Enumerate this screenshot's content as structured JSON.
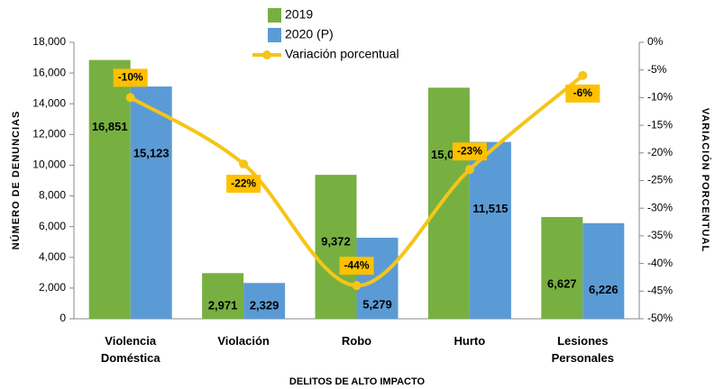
{
  "chart_data": {
    "type": "bar_line",
    "x_label": "DELITOS DE ALTO IMPACTO",
    "y_label": "NÚMERO DE DENUNCIAS",
    "y2_label": "VARIACIÓN PORCENTUAL",
    "categories": [
      "Violencia Doméstica",
      "Violación",
      "Robo",
      "Hurto",
      "Lesiones Personales"
    ],
    "series": [
      {
        "name": "2019",
        "type": "bar",
        "color": "#77b041",
        "values": [
          16851,
          2971,
          9372,
          15045,
          6627
        ],
        "value_labels": [
          "16,851",
          "2,971",
          "9,372",
          "15,045",
          "6,627"
        ]
      },
      {
        "name": "2020 (P)",
        "type": "bar",
        "color": "#5b9bd5",
        "values": [
          15123,
          2329,
          5279,
          11515,
          6226
        ],
        "value_labels": [
          "15,123",
          "2,329",
          "5,279",
          "11,515",
          "6,226"
        ]
      },
      {
        "name": "Variación porcentual",
        "type": "line",
        "axis": "y2",
        "color": "#f5c518",
        "values": [
          -10,
          -22,
          -44,
          -23,
          -6
        ],
        "value_labels": [
          "-10%",
          "-22%",
          "-44%",
          "-23%",
          "-6%"
        ]
      }
    ],
    "ylim": [
      0,
      18000
    ],
    "yticks": [
      {
        "value": 0,
        "label": "0"
      },
      {
        "value": 2000,
        "label": "2,000"
      },
      {
        "value": 4000,
        "label": "4,000"
      },
      {
        "value": 6000,
        "label": "6,000"
      },
      {
        "value": 8000,
        "label": "8,000"
      },
      {
        "value": 10000,
        "label": "10,000"
      },
      {
        "value": 12000,
        "label": "12,000"
      },
      {
        "value": 14000,
        "label": "14,000"
      },
      {
        "value": 16000,
        "label": "16,000"
      },
      {
        "value": 18000,
        "label": "18,000"
      }
    ],
    "y2lim": [
      -50,
      0
    ],
    "y2ticks": [
      {
        "value": 0,
        "label": "0%"
      },
      {
        "value": -5,
        "label": "-5%"
      },
      {
        "value": -10,
        "label": "-10%"
      },
      {
        "value": -15,
        "label": "-15%"
      },
      {
        "value": -20,
        "label": "-20%"
      },
      {
        "value": -25,
        "label": "-25%"
      },
      {
        "value": -30,
        "label": "-30%"
      },
      {
        "value": -35,
        "label": "-35%"
      },
      {
        "value": -40,
        "label": "-40%"
      },
      {
        "value": -45,
        "label": "-45%"
      },
      {
        "value": -50,
        "label": "-50%"
      }
    ],
    "grid": false
  }
}
